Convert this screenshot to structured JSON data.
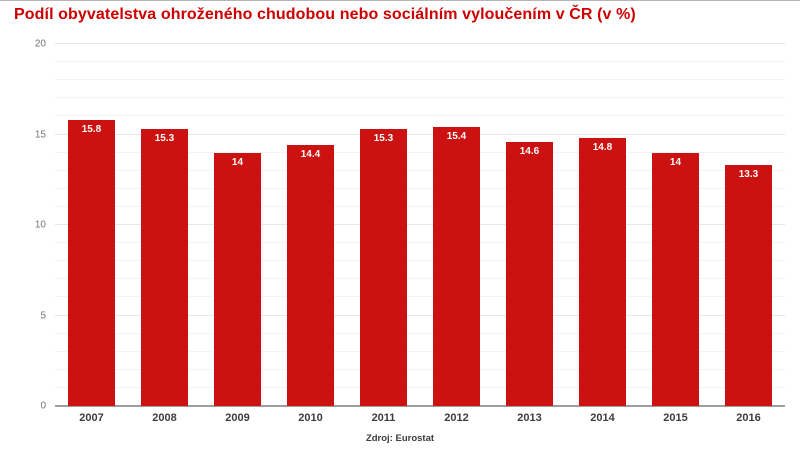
{
  "title": "Podíl obyvatelstva ohroženého chudobou nebo sociálním vyloučením v ČR (v %)",
  "source": "Zdroj: Eurostat",
  "colors": {
    "title": "#cc0000",
    "bar": "#cc1111",
    "bar_value_label": "#ffffff",
    "y_tick_label": "#757575",
    "x_tick_label": "#3d3d3d",
    "minor_gridline": "#f3f3f3",
    "major_gridline": "#e7e7e7",
    "baseline": "#9e9e9e",
    "background": "#ffffff"
  },
  "chart_data": {
    "type": "bar",
    "title": "Podíl obyvatelstva ohroženého chudobou nebo sociálním vyloučením v ČR (v %)",
    "categories": [
      "2007",
      "2008",
      "2009",
      "2010",
      "2011",
      "2012",
      "2013",
      "2014",
      "2015",
      "2016"
    ],
    "values": [
      15.8,
      15.3,
      14,
      14.4,
      15.3,
      15.4,
      14.6,
      14.8,
      14,
      13.3
    ],
    "data_labels": [
      "15.8",
      "15.3",
      "14",
      "14.4",
      "15.3",
      "15.4",
      "14.6",
      "14.8",
      "14",
      "13.3"
    ],
    "xlabel": "",
    "ylabel": "",
    "ylim": [
      0,
      20
    ],
    "yticks": [
      0,
      5,
      10,
      15,
      20
    ],
    "minor_grid_step": 1,
    "grid": true,
    "legend": "none",
    "source": "Zdroj: Eurostat"
  }
}
